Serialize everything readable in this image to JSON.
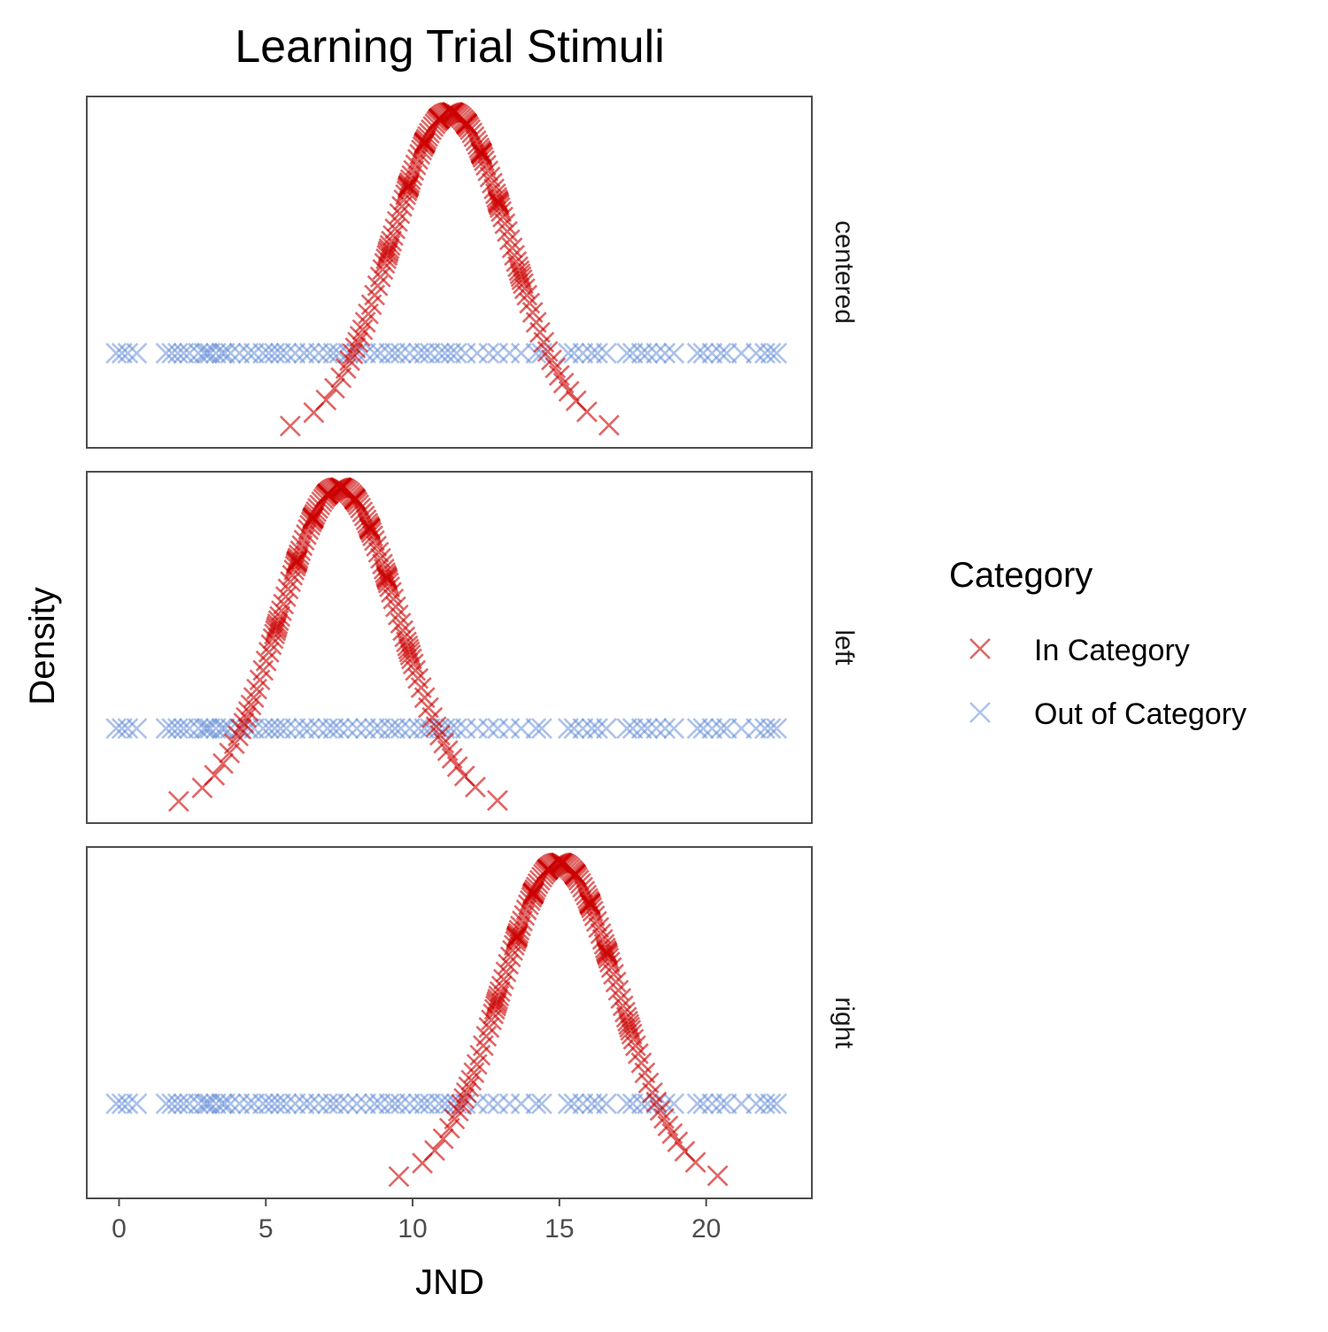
{
  "chart_data": {
    "type": "scatter",
    "title": "Learning Trial Stimuli",
    "xlabel": "JND",
    "ylabel": "Density",
    "xlim": [
      -1.1,
      23.6
    ],
    "x_ticks": [
      0,
      5,
      10,
      15,
      20
    ],
    "x_tick_labels": [
      "0",
      "5",
      "10",
      "15",
      "20"
    ],
    "y_axis_ticks_shown": false,
    "grid": false,
    "marker": "X",
    "facet_by": "condition",
    "facets": [
      {
        "label": "centered",
        "in_category_mean": 11.3
      },
      {
        "label": "left",
        "in_category_mean": 7.5
      },
      {
        "label": "right",
        "in_category_mean": 15.0
      }
    ],
    "in_category": {
      "sd": 2.0,
      "n_per_facet": 160,
      "description_values": "x spread normally around facet mean, y = normal density"
    },
    "out_of_category_x": [
      -0.1,
      0.1,
      0.3,
      0.6,
      1.6,
      1.8,
      2.0,
      2.2,
      2.4,
      2.7,
      2.9,
      3.0,
      3.1,
      3.3,
      3.5,
      3.6,
      3.8,
      4.1,
      4.4,
      4.6,
      4.9,
      5.1,
      5.3,
      5.5,
      5.7,
      6.0,
      6.3,
      6.5,
      6.8,
      7.1,
      7.3,
      7.5,
      7.8,
      8.1,
      8.4,
      8.7,
      8.9,
      9.2,
      9.4,
      9.6,
      9.9,
      10.2,
      10.4,
      10.6,
      10.9,
      11.1,
      11.3,
      11.5,
      11.8,
      12.2,
      12.6,
      12.9,
      13.3,
      13.7,
      14.2,
      14.4,
      15.3,
      15.5,
      15.8,
      16.1,
      16.3,
      16.6,
      17.3,
      17.5,
      17.8,
      18.0,
      18.3,
      18.6,
      18.9,
      19.7,
      19.9,
      20.2,
      20.5,
      20.7,
      21.2,
      21.7,
      22.0,
      22.2,
      22.4
    ],
    "out_of_category_y_level": 0.05,
    "y_range": [
      0.0,
      0.205
    ],
    "series": [
      {
        "name": "In Category",
        "color": "#CC0000",
        "opacity": 0.6
      },
      {
        "name": "Out of Category",
        "color": "#5C87D6",
        "opacity": 0.5
      }
    ],
    "legend": {
      "title": "Category",
      "placement": "right"
    }
  }
}
